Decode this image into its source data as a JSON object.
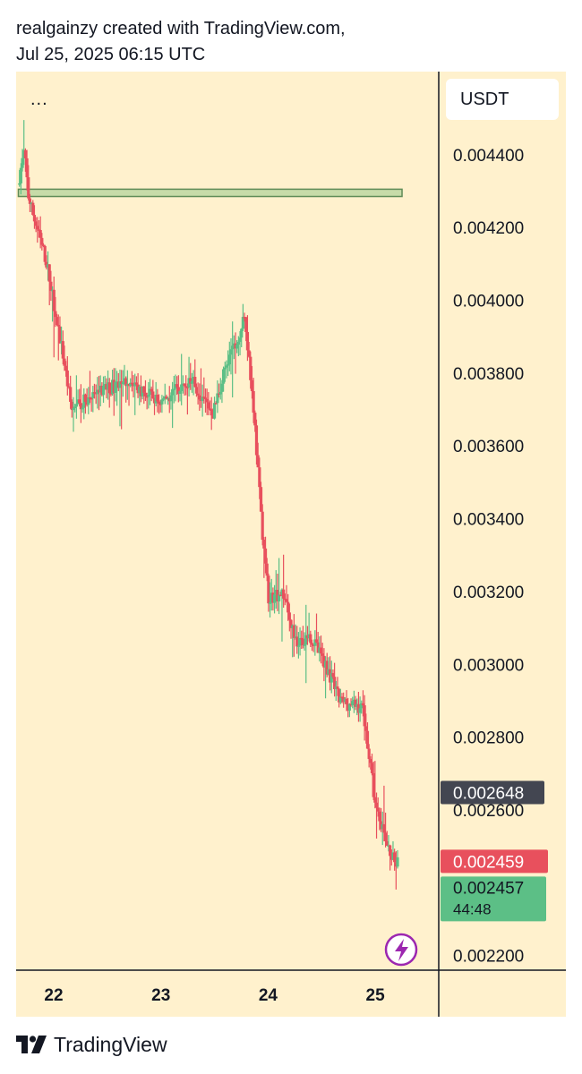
{
  "header": {
    "line1": "realgainzy created with TradingView.com,",
    "line2": "Jul 25, 2025 06:15 UTC"
  },
  "toolbar": {
    "menu_label": "..."
  },
  "currency": "USDT",
  "footer": {
    "brand": "TradingView",
    "logo_icon": "tradingview-logo-icon"
  },
  "colors": {
    "background": "#fff1cd",
    "up": "#5cbf86",
    "down": "#e8505d",
    "zone_fill": "#c7dba8",
    "zone_border": "#5f8b57",
    "price_label_dark": "#434651",
    "bolt": "#9c27b0"
  },
  "price_scale": {
    "ticks": [
      "0.004400",
      "0.004200",
      "0.004000",
      "0.003800",
      "0.003600",
      "0.003400",
      "0.003200",
      "0.003000",
      "0.002800",
      "0.002600",
      "0.002200"
    ]
  },
  "time_scale": {
    "ticks": [
      "22",
      "23",
      "24",
      "25"
    ]
  },
  "labels": {
    "marker_price": "0.002648",
    "last_price": "0.002459",
    "current_price": "0.002457",
    "countdown": "44:48"
  },
  "icons": {
    "bolt": "lightning-bolt-icon"
  },
  "chart_data": {
    "type": "candlestick",
    "quote_currency": "USDT",
    "x_ticks": [
      "22",
      "23",
      "24",
      "25"
    ],
    "y_ticks": [
      0.0044,
      0.0042,
      0.004,
      0.0038,
      0.0036,
      0.0034,
      0.0032,
      0.003,
      0.0028,
      0.0026,
      0.0022
    ],
    "ylim": [
      0.00216,
      0.004628
    ],
    "xlim": [
      21.67,
      25.64
    ],
    "zone": {
      "from": 0.004285,
      "to": 0.004305,
      "x_start": 21.67,
      "x_end": 25.25
    },
    "markers": {
      "level_price": 0.002648,
      "last_close": 0.002459,
      "current": 0.002457
    },
    "series": [
      {
        "name": "price",
        "waypoints": [
          {
            "t": 21.68,
            "p": 0.00432
          },
          {
            "t": 21.74,
            "p": 0.00441
          },
          {
            "t": 21.78,
            "p": 0.00428
          },
          {
            "t": 21.95,
            "p": 0.0041
          },
          {
            "t": 22.1,
            "p": 0.00385
          },
          {
            "t": 22.18,
            "p": 0.0037
          },
          {
            "t": 22.45,
            "p": 0.00375
          },
          {
            "t": 22.7,
            "p": 0.00378
          },
          {
            "t": 23.0,
            "p": 0.00372
          },
          {
            "t": 23.3,
            "p": 0.00378
          },
          {
            "t": 23.5,
            "p": 0.00369
          },
          {
            "t": 23.62,
            "p": 0.00382
          },
          {
            "t": 23.8,
            "p": 0.00395
          },
          {
            "t": 23.88,
            "p": 0.0037
          },
          {
            "t": 23.95,
            "p": 0.0034
          },
          {
            "t": 24.02,
            "p": 0.00318
          },
          {
            "t": 24.15,
            "p": 0.0032
          },
          {
            "t": 24.28,
            "p": 0.00305
          },
          {
            "t": 24.4,
            "p": 0.00308
          },
          {
            "t": 24.55,
            "p": 0.003
          },
          {
            "t": 24.68,
            "p": 0.0029
          },
          {
            "t": 24.9,
            "p": 0.00288
          },
          {
            "t": 25.02,
            "p": 0.0026
          },
          {
            "t": 25.15,
            "p": 0.00248
          },
          {
            "t": 25.22,
            "p": 0.00246
          }
        ]
      }
    ]
  }
}
